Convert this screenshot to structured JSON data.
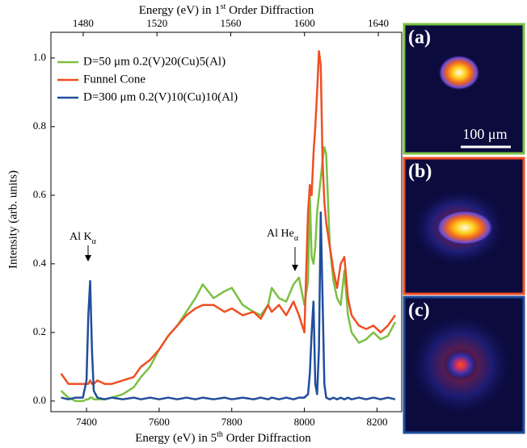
{
  "chart_data": {
    "type": "line",
    "xlabel": [
      "Energy (eV) in 5",
      "th",
      " Order Diffraction"
    ],
    "x2label": [
      "Energy (eV) in 1",
      "st",
      " Order Diffraction"
    ],
    "ylabel": "Intensity (arb. units)",
    "xlim": [
      7302,
      8268
    ],
    "xticks": [
      7400,
      7600,
      7800,
      8000,
      8200
    ],
    "x2lim": [
      1462.5,
      1652.7
    ],
    "x2ticks": [
      1480,
      1520,
      1560,
      1600,
      1640
    ],
    "ylim": [
      -0.031,
      1.075
    ],
    "yticks": [
      {
        "value": 0,
        "label": "0.0"
      },
      0.2,
      0.4,
      0.6,
      0.8,
      {
        "value": 1,
        "label": "1.0"
      }
    ],
    "legend": "upper left",
    "annotations": [
      [
        "Al K",
        "α"
      ],
      [
        "Al He",
        "α"
      ]
    ],
    "x": [
      7330,
      7350,
      7370,
      7390,
      7400,
      7405,
      7410,
      7415,
      7420,
      7430,
      7450,
      7470,
      7500,
      7530,
      7550,
      7575,
      7600,
      7625,
      7650,
      7675,
      7700,
      7720,
      7750,
      7780,
      7800,
      7830,
      7860,
      7880,
      7900,
      7910,
      7930,
      7950,
      7970,
      7985,
      8000,
      8010,
      8015,
      8020,
      8025,
      8030,
      8035,
      8040,
      8045,
      8050,
      8055,
      8060,
      8070,
      8080,
      8090,
      8100,
      8110,
      8120,
      8130,
      8150,
      8170,
      8190,
      8210,
      8230,
      8250
    ],
    "series": [
      {
        "name": "D=50 μm 0.2(V)20(Cu)5(Al)",
        "color": "#7ac143",
        "values": [
          0.03,
          0.01,
          0,
          0,
          0.005,
          0.005,
          0.01,
          0.01,
          0.005,
          0.005,
          0.005,
          0.01,
          0.02,
          0.04,
          0.07,
          0.1,
          0.15,
          0.19,
          0.22,
          0.26,
          0.3,
          0.34,
          0.3,
          0.32,
          0.33,
          0.28,
          0.26,
          0.25,
          0.28,
          0.33,
          0.3,
          0.29,
          0.34,
          0.36,
          0.28,
          0.35,
          0.6,
          0.42,
          0.4,
          0.45,
          0.55,
          0.6,
          0.65,
          0.7,
          0.74,
          0.72,
          0.45,
          0.35,
          0.3,
          0.28,
          0.38,
          0.25,
          0.2,
          0.17,
          0.18,
          0.2,
          0.18,
          0.19,
          0.23
        ]
      },
      {
        "name": "Funnel Cone",
        "color": "#f04e23",
        "values": [
          0.08,
          0.05,
          0.05,
          0.05,
          0.05,
          0.05,
          0.06,
          0.05,
          0.05,
          0.06,
          0.05,
          0.05,
          0.06,
          0.07,
          0.1,
          0.12,
          0.15,
          0.19,
          0.22,
          0.25,
          0.27,
          0.28,
          0.28,
          0.26,
          0.27,
          0.25,
          0.26,
          0.24,
          0.28,
          0.26,
          0.28,
          0.25,
          0.29,
          0.25,
          0.2,
          0.55,
          0.63,
          0.6,
          0.72,
          0.8,
          0.9,
          1.02,
          0.98,
          0.7,
          0.58,
          0.52,
          0.45,
          0.38,
          0.33,
          0.4,
          0.42,
          0.3,
          0.25,
          0.22,
          0.21,
          0.22,
          0.2,
          0.22,
          0.25
        ]
      },
      {
        "name": "D=300 μm 0.2(V)10(Cu)10(Al)",
        "color": "#1f4e9c",
        "values": [
          0.01,
          0.005,
          0.01,
          0.01,
          0.06,
          0.25,
          0.35,
          0.15,
          0.03,
          0.01,
          0.005,
          0.01,
          0.005,
          0.01,
          0.005,
          0.01,
          0.005,
          0.01,
          0.005,
          0.01,
          0.005,
          0.01,
          0.005,
          0.01,
          0.005,
          0.01,
          0.005,
          0.01,
          0.005,
          0.01,
          0.005,
          0.01,
          0.005,
          0.01,
          0.01,
          0.02,
          0.08,
          0.2,
          0.29,
          0.05,
          0.02,
          0.15,
          0.55,
          0.3,
          0.05,
          0.01,
          0.005,
          0.01,
          0.005,
          0.01,
          0.005,
          0.01,
          0.005,
          0.01,
          0.005,
          0.01,
          0.005,
          0.01,
          0.005
        ]
      }
    ]
  },
  "panels": [
    {
      "label": "(a)",
      "color": "#7ac143",
      "scale": "100 μm"
    },
    {
      "label": "(b)",
      "color": "#f04e23"
    },
    {
      "label": "(c)",
      "color": "#1f4e9c"
    }
  ]
}
